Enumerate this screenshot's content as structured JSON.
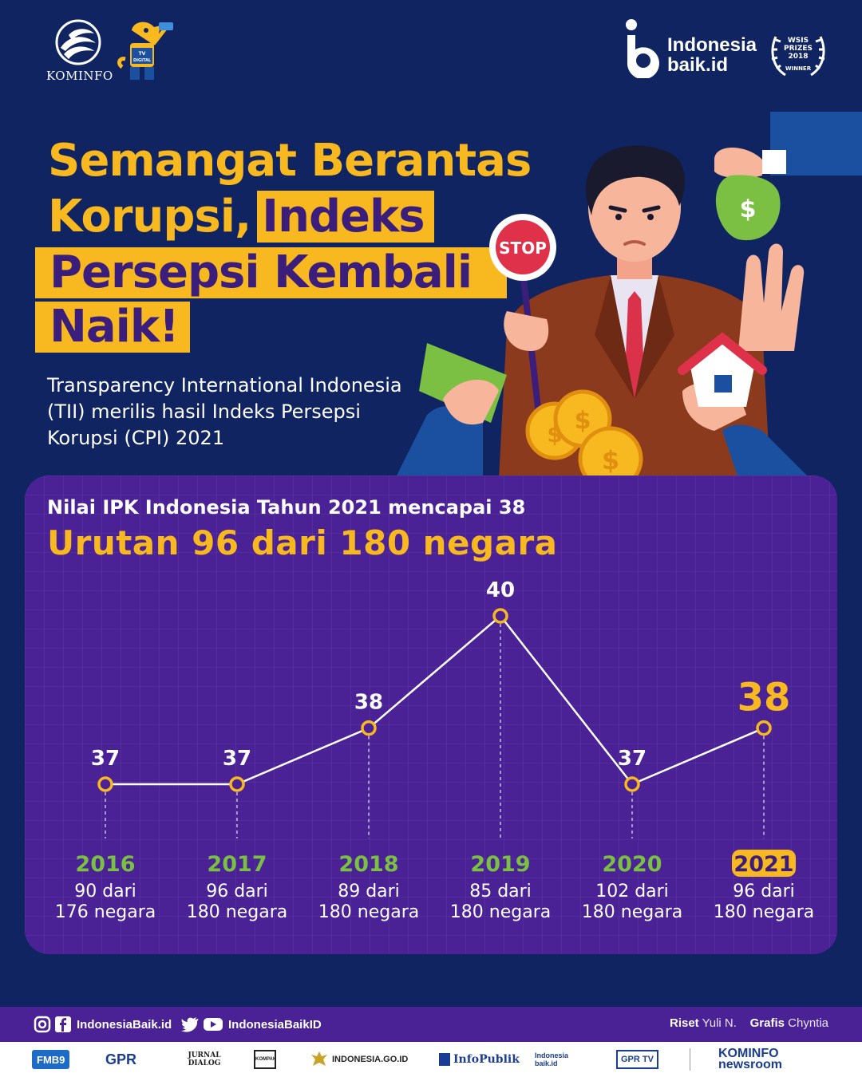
{
  "header": {
    "kominfo_label": "KOMINFO",
    "mascot_text": "TV DIGITAL",
    "brand_line1": "Indonesia",
    "brand_line2": "baik.id",
    "award_line1": "WSIS",
    "award_line2": "PRIZES",
    "award_line3": "2018",
    "award_line4": "WINNER"
  },
  "title": {
    "line1": "Semangat Berantas",
    "line2a": "Korupsi,",
    "line2b": "Indeks",
    "line3": "Persepsi Kembali",
    "line4": "Naik!"
  },
  "subtitle": "Transparency International Indonesia (TII) merilis hasil Indeks Persepsi Korupsi (CPI) 2021",
  "illustration": {
    "stop_sign": "STOP"
  },
  "panel": {
    "heading": "Nilai IPK Indonesia Tahun 2021 mencapai 38",
    "title": "Urutan 96 dari 180 negara"
  },
  "chart_data": {
    "type": "line",
    "title": "",
    "xlabel": "",
    "ylabel": "",
    "x": [
      "2016",
      "2017",
      "2018",
      "2019",
      "2020",
      "2021"
    ],
    "values": [
      37,
      37,
      38,
      40,
      37,
      38
    ],
    "ranks": [
      [
        "90 dari",
        "176 negara"
      ],
      [
        "96 dari",
        "180 negara"
      ],
      [
        "89 dari",
        "180 negara"
      ],
      [
        "85 dari",
        "180 negara"
      ],
      [
        "102 dari",
        "180 negara"
      ],
      [
        "96 dari",
        "180 negara"
      ]
    ],
    "highlight_index": 5,
    "ylim": [
      37,
      40
    ],
    "grid": false,
    "colors": {
      "line": "#ffffff",
      "marker": "#f8b81f",
      "year": "#7ac143",
      "highlight": "#f8b81f",
      "value": "#ffffff"
    }
  },
  "footer": {
    "social1": "IndonesiaBaik.id",
    "social2": "IndonesiaBaikID",
    "credit_label1": "Riset",
    "credit_name1": "Yuli N.",
    "credit_label2": "Grafis",
    "credit_name2": "Chyntia",
    "logos": [
      "FMB9",
      "GPR",
      "JURNAL DIALOG",
      "KOMPAKIN",
      "INDONESIA.GO.ID",
      "InfoPublik",
      "Indonesia baik.id",
      "GPR TV",
      "KOMINFO newsroom"
    ]
  }
}
